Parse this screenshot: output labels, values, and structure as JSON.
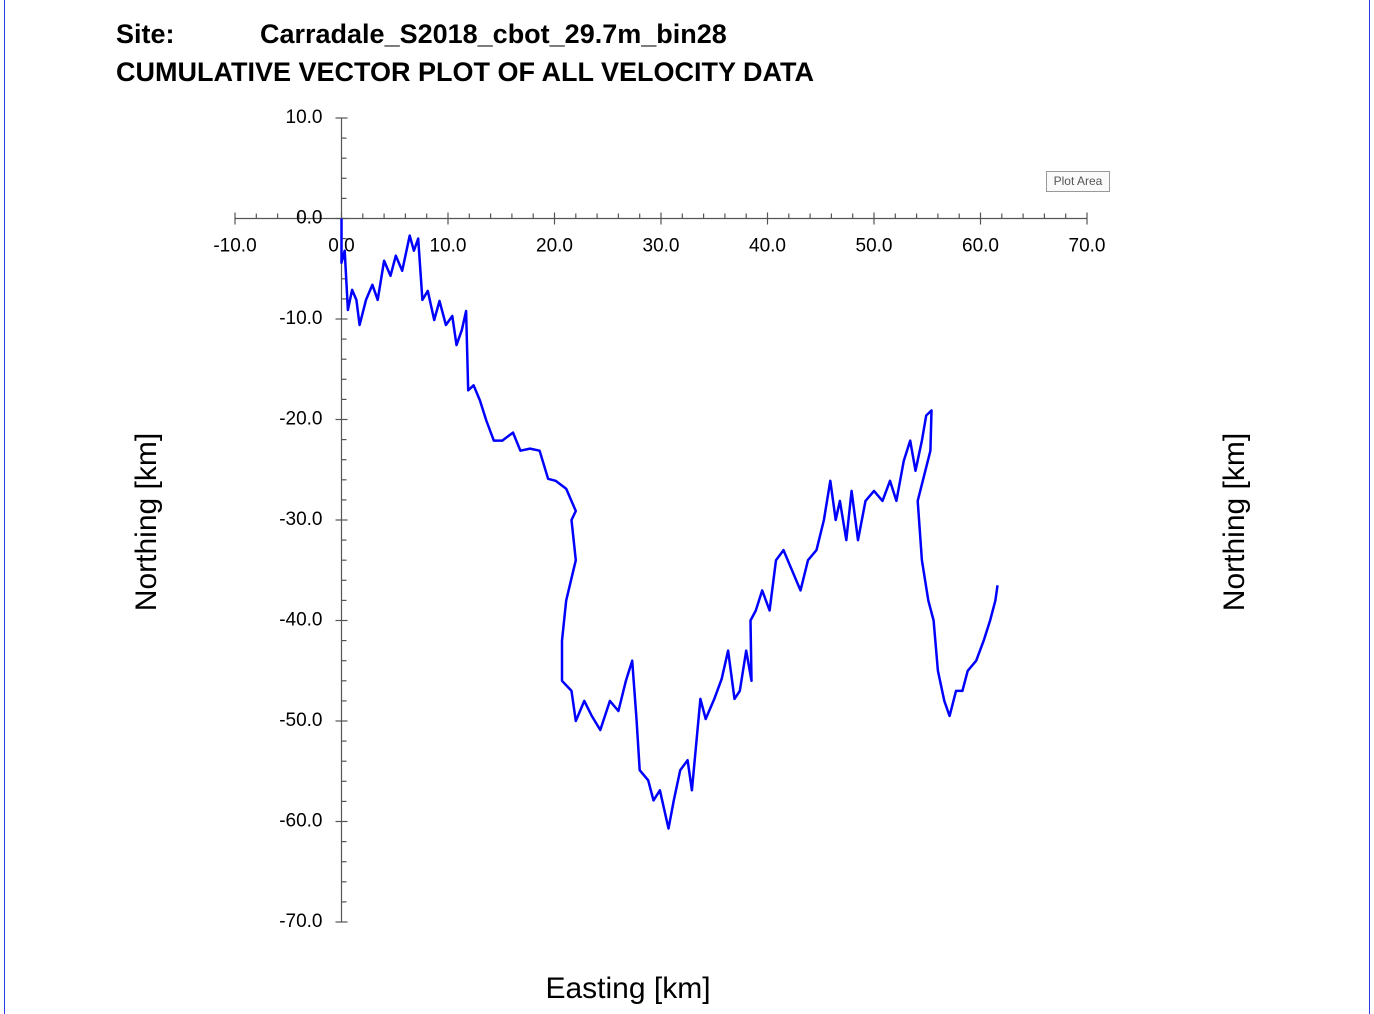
{
  "chart_data": {
    "type": "line",
    "site_label": "Site:",
    "site": "Carradale_S2018_cbot_29.7m_bin28",
    "title": "CUMULATIVE VECTOR PLOT OF ALL VELOCITY DATA",
    "x_label": "Easting [km]",
    "y_label": "Northing [km]",
    "tooltip": "Plot Area",
    "color": "#0000ff",
    "xlim": [
      -10,
      70
    ],
    "ylim": [
      -70,
      10
    ],
    "xticks": [
      {
        "value": -10,
        "label": "-10.0"
      },
      {
        "value": 0,
        "label": "0.0"
      },
      {
        "value": 10,
        "label": "10.0"
      },
      {
        "value": 20,
        "label": "20.0"
      },
      {
        "value": 30,
        "label": "30.0"
      },
      {
        "value": 40,
        "label": "40.0"
      },
      {
        "value": 50,
        "label": "50.0"
      },
      {
        "value": 60,
        "label": "60.0"
      },
      {
        "value": 70,
        "label": "70.0"
      }
    ],
    "yticks": [
      {
        "value": 10,
        "label": "10.0"
      },
      {
        "value": 0,
        "label": "0.0"
      },
      {
        "value": -10,
        "label": "-10.0"
      },
      {
        "value": -20,
        "label": "-20.0"
      },
      {
        "value": -30,
        "label": "-30.0"
      },
      {
        "value": -40,
        "label": "-40.0"
      },
      {
        "value": -50,
        "label": "-50.0"
      },
      {
        "value": -60,
        "label": "-60.0"
      },
      {
        "value": -70,
        "label": "-70.0"
      }
    ],
    "xminorticks": [
      -8,
      -6,
      -4,
      -2,
      2,
      4,
      6,
      8,
      12,
      14,
      16,
      18,
      22,
      24,
      26,
      28,
      32,
      34,
      36,
      38,
      42,
      44,
      46,
      48,
      52,
      54,
      56,
      58,
      62,
      64,
      66,
      68
    ],
    "yminorticks": [
      8,
      6,
      4,
      2,
      -2,
      -4,
      -6,
      -8,
      -12,
      -14,
      -16,
      -18,
      -22,
      -24,
      -26,
      -28,
      -32,
      -34,
      -36,
      -38,
      -42,
      -44,
      -46,
      -48,
      -52,
      -54,
      -56,
      -58,
      -62,
      -64,
      -66,
      -68
    ],
    "x": [
      0.0,
      0.0,
      0.3,
      0.6,
      1.0,
      1.4,
      1.7,
      2.3,
      2.9,
      3.4,
      4.0,
      4.6,
      5.1,
      5.7,
      6.4,
      6.8,
      7.2,
      7.6,
      8.1,
      8.7,
      9.2,
      9.8,
      10.4,
      10.8,
      11.3,
      11.7,
      11.9,
      12.4,
      13.0,
      13.6,
      14.3,
      15.1,
      16.1,
      16.8,
      17.7,
      18.6,
      19.4,
      20.1,
      21.1,
      22.0,
      21.6,
      22.0,
      21.1,
      20.7,
      20.7,
      21.6,
      22.0,
      22.8,
      23.5,
      24.3,
      25.2,
      26.0,
      26.7,
      27.3,
      27.7,
      28.0,
      28.8,
      29.3,
      29.9,
      30.7,
      31.2,
      31.8,
      32.5,
      32.9,
      33.7,
      34.2,
      35.0,
      35.7,
      36.3,
      36.9,
      37.4,
      38.0,
      38.5,
      38.4,
      38.9,
      39.5,
      40.2,
      40.8,
      41.5,
      42.3,
      43.1,
      43.8,
      44.6,
      45.3,
      45.9,
      46.4,
      46.8,
      47.4,
      47.9,
      48.5,
      49.2,
      50.0,
      50.8,
      51.5,
      52.1,
      52.8,
      53.4,
      53.9,
      54.5,
      54.9,
      55.4,
      55.3,
      54.1,
      54.5,
      55.1,
      55.6,
      56.0,
      56.6,
      57.1,
      57.7,
      58.3,
      58.8,
      59.6,
      60.3,
      60.9,
      61.4,
      61.6
    ],
    "values": [
      0.0,
      -4.4,
      -3.2,
      -9.1,
      -7.1,
      -8.1,
      -10.6,
      -8.1,
      -6.6,
      -8.1,
      -4.2,
      -5.7,
      -3.7,
      -5.2,
      -1.7,
      -3.2,
      -2.0,
      -8.1,
      -7.2,
      -10.1,
      -8.2,
      -10.6,
      -9.7,
      -12.6,
      -11.1,
      -9.2,
      -17.1,
      -16.6,
      -18.1,
      -20.1,
      -22.1,
      -22.1,
      -21.3,
      -23.1,
      -22.9,
      -23.1,
      -25.9,
      -26.1,
      -26.9,
      -29.1,
      -30.0,
      -34.0,
      -38.0,
      -42.0,
      -46.0,
      -47.0,
      -50.0,
      -48.0,
      -49.5,
      -50.9,
      -48.0,
      -49.0,
      -46.0,
      -44.0,
      -49.8,
      -54.9,
      -55.9,
      -57.9,
      -56.9,
      -60.7,
      -57.9,
      -54.9,
      -53.9,
      -56.9,
      -47.8,
      -49.8,
      -47.8,
      -45.8,
      -43.0,
      -47.8,
      -47.0,
      -43.0,
      -46.0,
      -40.0,
      -39.0,
      -37.0,
      -39.0,
      -34.0,
      -33.0,
      -35.0,
      -37.0,
      -34.0,
      -33.0,
      -30.0,
      -26.1,
      -30.0,
      -28.1,
      -32.0,
      -27.1,
      -32.0,
      -28.1,
      -27.1,
      -28.1,
      -26.1,
      -28.1,
      -24.1,
      -22.1,
      -25.1,
      -22.1,
      -19.6,
      -19.1,
      -23.1,
      -28.1,
      -34.0,
      -38.0,
      -40.0,
      -45.0,
      -48.0,
      -49.5,
      -47.0,
      -47.0,
      -45.0,
      -44.0,
      -42.0,
      -40.0,
      -38.0,
      -36.5
    ]
  }
}
